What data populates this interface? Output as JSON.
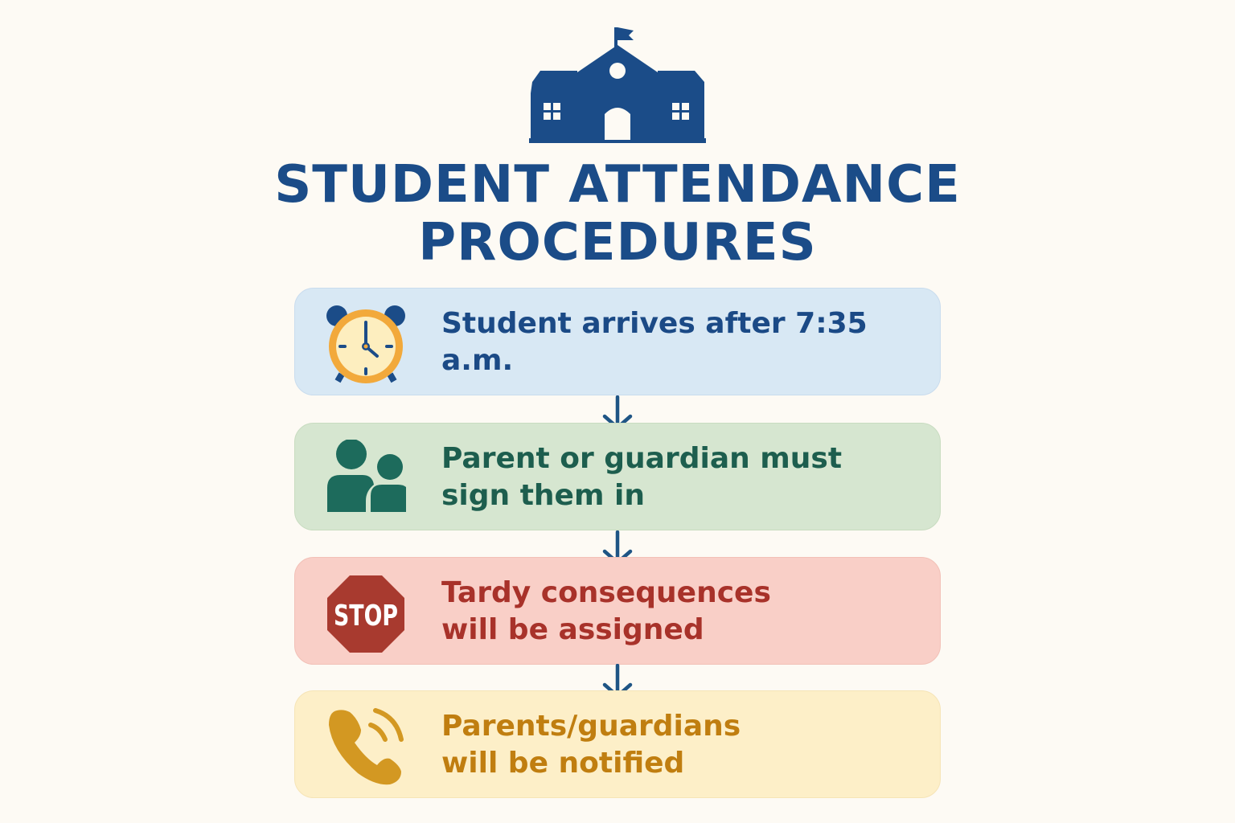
{
  "title": {
    "line1": "STUDENT ATTENDANCE",
    "line2": "PROCEDURES",
    "color": "#1b4c88"
  },
  "steps": [
    {
      "icon": "alarm-clock-icon",
      "label": "Student arrives after 7:35 a.m.",
      "color": "#1b4a86",
      "background": "#d8e8f4"
    },
    {
      "icon": "people-icon",
      "label": "Parent or guardian must\nsign them in",
      "color": "#1d5e4e",
      "background": "#d6e6d0"
    },
    {
      "icon": "stop-sign-icon",
      "label": "Tardy consequences\nwill be assigned",
      "color": "#a8322a",
      "background": "#f9cfc7",
      "icon_text": "STOP"
    },
    {
      "icon": "phone-icon",
      "label": "Parents/guardians\nwill be notified",
      "color": "#c07e10",
      "background": "#fdefc8"
    }
  ]
}
